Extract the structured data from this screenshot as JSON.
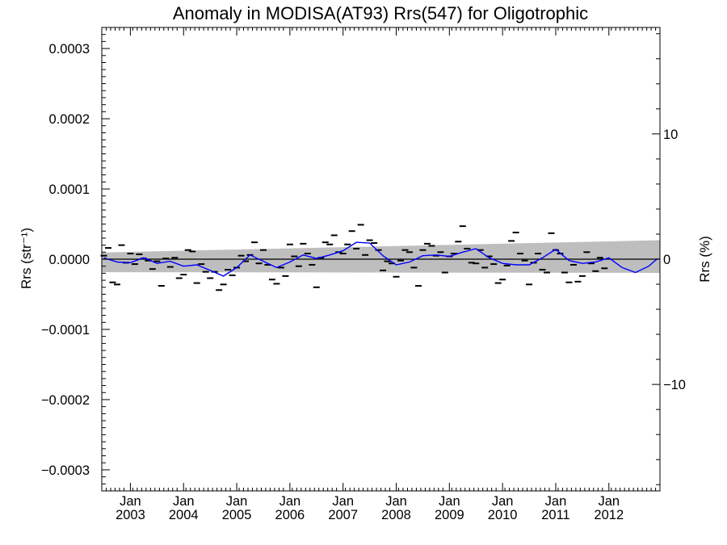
{
  "chart_data": {
    "type": "scatter",
    "title": "Anomaly in MODISA(AT93) Rrs(547) for Oligotrophic",
    "ylabel_left": "Rrs (str⁻¹)",
    "ylabel_right": "Rrs (%)",
    "x_range": [
      "2002-07-01",
      "2012-12-31"
    ],
    "ylim_left": [
      -0.00033,
      0.00033
    ],
    "ylim_right": [
      -18.5,
      18.5
    ],
    "left_ticks": [
      {
        "value": 0.0003,
        "label": "0.0003"
      },
      {
        "value": 0.0002,
        "label": "0.0002"
      },
      {
        "value": 0.0001,
        "label": "0.0001"
      },
      {
        "value": 0.0,
        "label": "0.0000"
      },
      {
        "value": -0.0001,
        "label": "−0.0001"
      },
      {
        "value": -0.0002,
        "label": "−0.0002"
      },
      {
        "value": -0.0003,
        "label": "−0.0003"
      }
    ],
    "right_ticks": [
      {
        "value": 10,
        "label": "10"
      },
      {
        "value": 0,
        "label": "0"
      },
      {
        "value": -10,
        "label": "−10"
      }
    ],
    "x_ticks": [
      {
        "date": "2003-01",
        "label_month": "Jan",
        "label_year": "2003"
      },
      {
        "date": "2004-01",
        "label_month": "Jan",
        "label_year": "2004"
      },
      {
        "date": "2005-01",
        "label_month": "Jan",
        "label_year": "2005"
      },
      {
        "date": "2006-01",
        "label_month": "Jan",
        "label_year": "2006"
      },
      {
        "date": "2007-01",
        "label_month": "Jan",
        "label_year": "2007"
      },
      {
        "date": "2008-01",
        "label_month": "Jan",
        "label_year": "2008"
      },
      {
        "date": "2009-01",
        "label_month": "Jan",
        "label_year": "2009"
      },
      {
        "date": "2010-01",
        "label_month": "Jan",
        "label_year": "2010"
      },
      {
        "date": "2011-01",
        "label_month": "Jan",
        "label_year": "2011"
      },
      {
        "date": "2012-01",
        "label_month": "Jan",
        "label_year": "2012"
      }
    ],
    "band": {
      "start": {
        "date": "2002-07",
        "upper": 9.5e-06,
        "lower": -1.85e-05
      },
      "end": {
        "date": "2012-12",
        "upper": 2.7e-05,
        "lower": -1.95e-05
      }
    },
    "zero_line": 0.0,
    "monthly_anomalies": [
      {
        "date": "2002-07",
        "value": 5e-06
      },
      {
        "date": "2002-08",
        "value": 1.6e-05
      },
      {
        "date": "2002-09",
        "value": -3.3e-05
      },
      {
        "date": "2002-10",
        "value": -3.6e-05
      },
      {
        "date": "2002-11",
        "value": 2e-05
      },
      {
        "date": "2002-12",
        "value": -5e-06
      },
      {
        "date": "2003-01",
        "value": 8e-06
      },
      {
        "date": "2003-02",
        "value": -7e-06
      },
      {
        "date": "2003-03",
        "value": 7e-06
      },
      {
        "date": "2003-04",
        "value": 1e-06
      },
      {
        "date": "2003-05",
        "value": -2e-06
      },
      {
        "date": "2003-06",
        "value": -1.4e-05
      },
      {
        "date": "2003-07",
        "value": -3e-06
      },
      {
        "date": "2003-08",
        "value": -3.8e-05
      },
      {
        "date": "2003-09",
        "value": 1e-06
      },
      {
        "date": "2003-10",
        "value": -1.1e-05
      },
      {
        "date": "2003-11",
        "value": 2e-06
      },
      {
        "date": "2003-12",
        "value": -2.7e-05
      },
      {
        "date": "2004-01",
        "value": -2.2e-05
      },
      {
        "date": "2004-02",
        "value": 1.3e-05
      },
      {
        "date": "2004-03",
        "value": 1.1e-05
      },
      {
        "date": "2004-04",
        "value": -3.4e-05
      },
      {
        "date": "2004-05",
        "value": -7e-06
      },
      {
        "date": "2004-06",
        "value": -1.8e-05
      },
      {
        "date": "2004-07",
        "value": -2.7e-05
      },
      {
        "date": "2004-08",
        "value": -1.8e-05
      },
      {
        "date": "2004-09",
        "value": -4.4e-05
      },
      {
        "date": "2004-10",
        "value": -3.6e-05
      },
      {
        "date": "2004-11",
        "value": -1.5e-05
      },
      {
        "date": "2004-12",
        "value": -2.3e-05
      },
      {
        "date": "2005-01",
        "value": -1.2e-05
      },
      {
        "date": "2005-02",
        "value": 5e-06
      },
      {
        "date": "2005-03",
        "value": -3e-06
      },
      {
        "date": "2005-04",
        "value": 6e-06
      },
      {
        "date": "2005-05",
        "value": 2.4e-05
      },
      {
        "date": "2005-06",
        "value": -6e-06
      },
      {
        "date": "2005-07",
        "value": 1.3e-05
      },
      {
        "date": "2005-08",
        "value": -8e-06
      },
      {
        "date": "2005-09",
        "value": -2.9e-05
      },
      {
        "date": "2005-10",
        "value": -3.5e-05
      },
      {
        "date": "2005-11",
        "value": -1.2e-05
      },
      {
        "date": "2005-12",
        "value": -2.4e-05
      },
      {
        "date": "2006-01",
        "value": 2.1e-05
      },
      {
        "date": "2006-02",
        "value": 4e-06
      },
      {
        "date": "2006-03",
        "value": -1e-05
      },
      {
        "date": "2006-04",
        "value": 2.2e-05
      },
      {
        "date": "2006-05",
        "value": 8e-06
      },
      {
        "date": "2006-06",
        "value": -8e-06
      },
      {
        "date": "2006-07",
        "value": -4e-05
      },
      {
        "date": "2006-08",
        "value": 2e-06
      },
      {
        "date": "2006-09",
        "value": 2.4e-05
      },
      {
        "date": "2006-10",
        "value": 2.1e-05
      },
      {
        "date": "2006-11",
        "value": 3.4e-05
      },
      {
        "date": "2006-12",
        "value": 1e-05
      },
      {
        "date": "2007-01",
        "value": 8e-06
      },
      {
        "date": "2007-02",
        "value": 2.1e-05
      },
      {
        "date": "2007-03",
        "value": 4e-05
      },
      {
        "date": "2007-04",
        "value": 1.5e-05
      },
      {
        "date": "2007-05",
        "value": 4.9e-05
      },
      {
        "date": "2007-06",
        "value": 6e-06
      },
      {
        "date": "2007-07",
        "value": 2.7e-05
      },
      {
        "date": "2007-08",
        "value": 2.3e-05
      },
      {
        "date": "2007-09",
        "value": 1.3e-05
      },
      {
        "date": "2007-10",
        "value": -1.6e-05
      },
      {
        "date": "2007-11",
        "value": -3e-06
      },
      {
        "date": "2007-12",
        "value": -6e-06
      },
      {
        "date": "2008-01",
        "value": -2.5e-05
      },
      {
        "date": "2008-02",
        "value": -2e-06
      },
      {
        "date": "2008-03",
        "value": 1.3e-05
      },
      {
        "date": "2008-04",
        "value": 1e-05
      },
      {
        "date": "2008-05",
        "value": -1.2e-05
      },
      {
        "date": "2008-06",
        "value": -3.8e-05
      },
      {
        "date": "2008-07",
        "value": 1.3e-05
      },
      {
        "date": "2008-08",
        "value": 2.2e-05
      },
      {
        "date": "2008-09",
        "value": 1.9e-05
      },
      {
        "date": "2008-10",
        "value": 5e-06
      },
      {
        "date": "2008-11",
        "value": 1e-05
      },
      {
        "date": "2008-12",
        "value": -1.9e-05
      },
      {
        "date": "2009-01",
        "value": 4e-06
      },
      {
        "date": "2009-02",
        "value": 8e-06
      },
      {
        "date": "2009-03",
        "value": 2.5e-05
      },
      {
        "date": "2009-04",
        "value": 4.7e-05
      },
      {
        "date": "2009-05",
        "value": 1.5e-05
      },
      {
        "date": "2009-06",
        "value": -5e-06
      },
      {
        "date": "2009-07",
        "value": -6e-06
      },
      {
        "date": "2009-08",
        "value": 1.3e-05
      },
      {
        "date": "2009-09",
        "value": -1.2e-05
      },
      {
        "date": "2009-10",
        "value": 4e-06
      },
      {
        "date": "2009-11",
        "value": -7e-06
      },
      {
        "date": "2009-12",
        "value": -3.4e-05
      },
      {
        "date": "2010-01",
        "value": -2.9e-05
      },
      {
        "date": "2010-02",
        "value": -9e-06
      },
      {
        "date": "2010-03",
        "value": 2.6e-05
      },
      {
        "date": "2010-04",
        "value": 3.8e-05
      },
      {
        "date": "2010-05",
        "value": 8e-06
      },
      {
        "date": "2010-06",
        "value": -2e-06
      },
      {
        "date": "2010-07",
        "value": -3.6e-05
      },
      {
        "date": "2010-08",
        "value": -5e-06
      },
      {
        "date": "2010-09",
        "value": 8e-06
      },
      {
        "date": "2010-10",
        "value": -1.5e-05
      },
      {
        "date": "2010-11",
        "value": -1.9e-05
      },
      {
        "date": "2010-12",
        "value": 3.7e-05
      },
      {
        "date": "2011-01",
        "value": 1.3e-05
      },
      {
        "date": "2011-02",
        "value": 8e-06
      },
      {
        "date": "2011-03",
        "value": -1.9e-05
      },
      {
        "date": "2011-04",
        "value": -3.3e-05
      },
      {
        "date": "2011-05",
        "value": -8e-06
      },
      {
        "date": "2011-06",
        "value": -3.2e-05
      },
      {
        "date": "2011-07",
        "value": -2.4e-05
      },
      {
        "date": "2011-08",
        "value": 1e-05
      },
      {
        "date": "2011-09",
        "value": -6e-06
      },
      {
        "date": "2011-10",
        "value": -1.7e-05
      },
      {
        "date": "2011-11",
        "value": 2e-06
      },
      {
        "date": "2011-12",
        "value": -1.3e-05
      }
    ],
    "running_mean": [
      {
        "date": "2002-07",
        "value": 2e-06
      },
      {
        "date": "2002-10",
        "value": -4e-06
      },
      {
        "date": "2003-01",
        "value": -5e-06
      },
      {
        "date": "2003-04",
        "value": 2e-06
      },
      {
        "date": "2003-07",
        "value": -6e-06
      },
      {
        "date": "2003-10",
        "value": -3e-06
      },
      {
        "date": "2004-01",
        "value": -1e-05
      },
      {
        "date": "2004-04",
        "value": -8e-06
      },
      {
        "date": "2004-07",
        "value": -1.6e-05
      },
      {
        "date": "2004-10",
        "value": -2.4e-05
      },
      {
        "date": "2005-01",
        "value": -1.2e-05
      },
      {
        "date": "2005-04",
        "value": 6e-06
      },
      {
        "date": "2005-07",
        "value": -3e-06
      },
      {
        "date": "2005-10",
        "value": -1.2e-05
      },
      {
        "date": "2006-01",
        "value": -4e-06
      },
      {
        "date": "2006-04",
        "value": 6e-06
      },
      {
        "date": "2006-07",
        "value": 1e-06
      },
      {
        "date": "2006-10",
        "value": 6e-06
      },
      {
        "date": "2007-01",
        "value": 1.2e-05
      },
      {
        "date": "2007-04",
        "value": 2.4e-05
      },
      {
        "date": "2007-07",
        "value": 2.3e-05
      },
      {
        "date": "2007-10",
        "value": 5e-06
      },
      {
        "date": "2008-01",
        "value": -8e-06
      },
      {
        "date": "2008-04",
        "value": -4e-06
      },
      {
        "date": "2008-07",
        "value": 5e-06
      },
      {
        "date": "2008-10",
        "value": 6e-06
      },
      {
        "date": "2009-01",
        "value": 4e-06
      },
      {
        "date": "2009-04",
        "value": 1e-05
      },
      {
        "date": "2009-07",
        "value": 1.5e-05
      },
      {
        "date": "2009-10",
        "value": 2e-06
      },
      {
        "date": "2010-01",
        "value": -6e-06
      },
      {
        "date": "2010-04",
        "value": -8e-06
      },
      {
        "date": "2010-07",
        "value": -8e-06
      },
      {
        "date": "2010-10",
        "value": 2e-06
      },
      {
        "date": "2011-01",
        "value": 1.4e-05
      },
      {
        "date": "2011-04",
        "value": -2e-06
      },
      {
        "date": "2011-07",
        "value": -6e-06
      },
      {
        "date": "2011-10",
        "value": -4e-06
      },
      {
        "date": "2012-01",
        "value": 2e-06
      },
      {
        "date": "2012-04",
        "value": -1.2e-05
      },
      {
        "date": "2012-07",
        "value": -1.9e-05
      },
      {
        "date": "2012-10",
        "value": -1e-05
      },
      {
        "date": "2012-12",
        "value": 1e-06
      }
    ],
    "colors": {
      "band": "#bebebe",
      "running_mean": "#0000ff",
      "markers": "#000000",
      "zero_line": "#000000",
      "axes": "#000000"
    }
  }
}
